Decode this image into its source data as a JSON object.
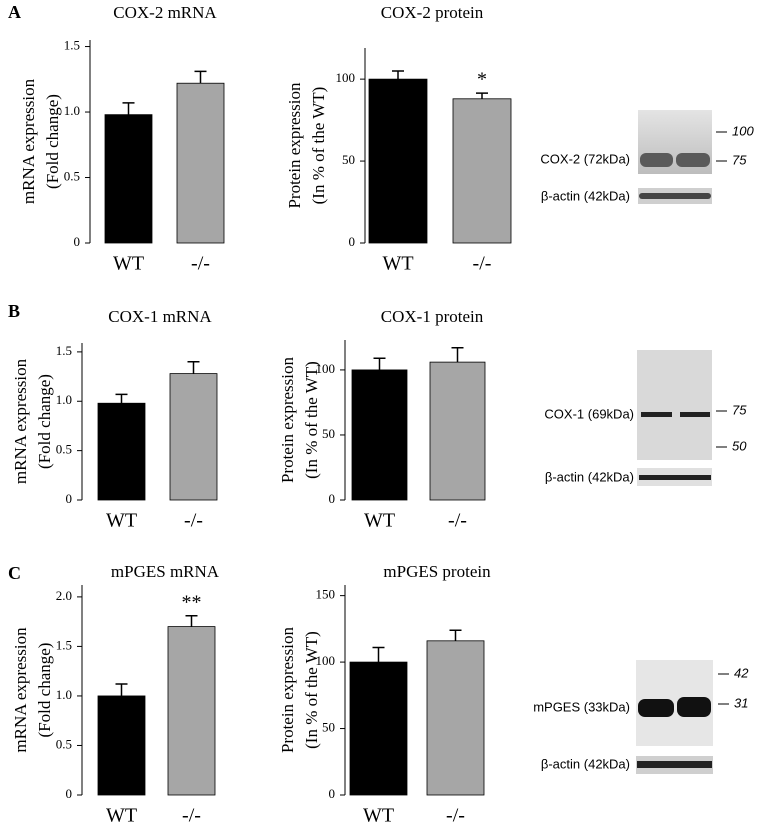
{
  "panel_labels": [
    "A",
    "B",
    "C"
  ],
  "blots": [
    {
      "target": "COX-2 (72kDa)",
      "loading": "β-actin (42kDa)",
      "markers": [
        "100",
        "75"
      ]
    },
    {
      "target": "COX-1 (69kDa)",
      "loading": "β-actin (42kDa)",
      "markers": [
        "75",
        "50"
      ]
    },
    {
      "target": "mPGES (33kDa)",
      "loading": "β-actin (42kDa)",
      "markers": [
        "42",
        "31"
      ]
    }
  ],
  "chart_data": [
    {
      "type": "bar",
      "title": "COX-2 mRNA",
      "ylabel": [
        "mRNA expression",
        "(Fold change)"
      ],
      "categories": [
        "WT",
        "-/-"
      ],
      "values": [
        0.98,
        1.22
      ],
      "errors": [
        0.09,
        0.09
      ],
      "colors": [
        "#000000",
        "#a6a6a6"
      ],
      "ylim": [
        0,
        1.55
      ],
      "yticks": [
        0,
        {
          "value": 0.5,
          "label": "0.5"
        },
        {
          "value": 1,
          "label": "1.0"
        },
        1.5
      ]
    },
    {
      "type": "bar",
      "title": "COX-2 protein",
      "ylabel": [
        "Protein expression",
        "(In % of the WT)"
      ],
      "categories": [
        "WT",
        "-/-"
      ],
      "values": [
        100,
        88
      ],
      "errors": [
        5,
        3.5
      ],
      "colors": [
        "#000000",
        "#a6a6a6"
      ],
      "ylim": [
        0,
        119
      ],
      "yticks": [
        0,
        50,
        100
      ],
      "annotations": [
        {
          "category": "-/-",
          "text": "*"
        }
      ]
    },
    {
      "type": "bar",
      "title": "COX-1 mRNA",
      "ylabel": [
        "mRNA expression",
        "(Fold change)"
      ],
      "categories": [
        "WT",
        "-/-"
      ],
      "values": [
        0.98,
        1.28
      ],
      "errors": [
        0.09,
        0.12
      ],
      "colors": [
        "#000000",
        "#a6a6a6"
      ],
      "ylim": [
        0,
        1.59
      ],
      "yticks": [
        0,
        {
          "value": 0.5,
          "label": "0.5"
        },
        {
          "value": 1,
          "label": "1.0"
        },
        1.5
      ]
    },
    {
      "type": "bar",
      "title": "COX-1 protein",
      "ylabel": [
        "Protein expression",
        "(In % of the WT)"
      ],
      "categories": [
        "WT",
        "-/-"
      ],
      "values": [
        100,
        106
      ],
      "errors": [
        9,
        11
      ],
      "colors": [
        "#000000",
        "#a6a6a6"
      ],
      "ylim": [
        0,
        123
      ],
      "yticks": [
        0,
        50,
        100
      ]
    },
    {
      "type": "bar",
      "title": "mPGES mRNA",
      "ylabel": [
        "mRNA expression",
        "(Fold change)"
      ],
      "categories": [
        "WT",
        "-/-"
      ],
      "values": [
        1.0,
        1.7
      ],
      "errors": [
        0.12,
        0.11
      ],
      "colors": [
        "#000000",
        "#a6a6a6"
      ],
      "ylim": [
        0,
        2.12
      ],
      "yticks": [
        0,
        {
          "value": 0.5,
          "label": "0.5"
        },
        {
          "value": 1,
          "label": "1.0"
        },
        1.5,
        {
          "value": 2,
          "label": "2.0"
        }
      ],
      "annotations": [
        {
          "category": "-/-",
          "text": "**"
        }
      ]
    },
    {
      "type": "bar",
      "title": "mPGES protein",
      "ylabel": [
        "Protein expression",
        "(In % of the WT)"
      ],
      "categories": [
        "WT",
        "-/-"
      ],
      "values": [
        100,
        116
      ],
      "errors": [
        11,
        8
      ],
      "colors": [
        "#000000",
        "#a6a6a6"
      ],
      "ylim": [
        0,
        158
      ],
      "yticks": [
        0,
        50,
        100,
        150
      ]
    }
  ]
}
